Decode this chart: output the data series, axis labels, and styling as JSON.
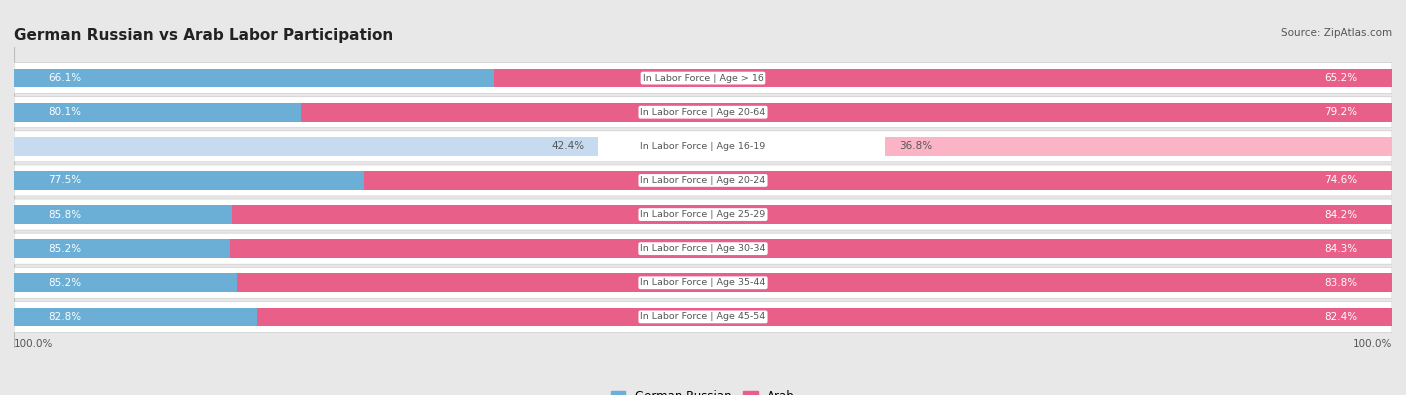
{
  "title": "German Russian vs Arab Labor Participation",
  "source": "Source: ZipAtlas.com",
  "categories": [
    "In Labor Force | Age > 16",
    "In Labor Force | Age 20-64",
    "In Labor Force | Age 16-19",
    "In Labor Force | Age 20-24",
    "In Labor Force | Age 25-29",
    "In Labor Force | Age 30-34",
    "In Labor Force | Age 35-44",
    "In Labor Force | Age 45-54"
  ],
  "german_russian": [
    66.1,
    80.1,
    42.4,
    77.5,
    85.8,
    85.2,
    85.2,
    82.8
  ],
  "arab": [
    65.2,
    79.2,
    36.8,
    74.6,
    84.2,
    84.3,
    83.8,
    82.4
  ],
  "blue_color": "#6baed6",
  "blue_light_color": "#c6dbef",
  "pink_color": "#e8608a",
  "pink_light_color": "#fbb4c6",
  "bg_color": "#e8e8e8",
  "row_bg_color": "#f5f5f5",
  "label_color": "#555555",
  "title_color": "#222222",
  "legend_blue": "German Russian",
  "legend_pink": "Arab",
  "axis_label": "100.0%",
  "max_val": 100,
  "light_rows": [
    2
  ]
}
